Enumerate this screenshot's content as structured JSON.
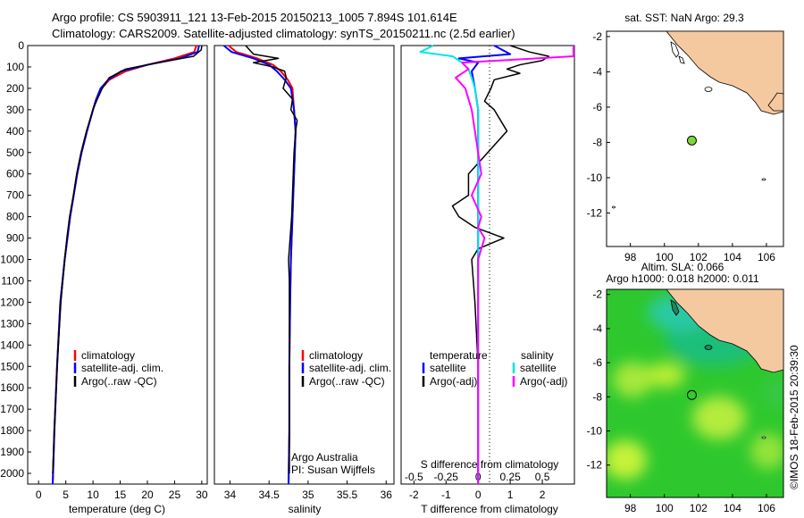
{
  "header": {
    "line1": "Argo profile: CS 5903911_121 13-Feb-2015 20150213_1005 7.894S 101.614E",
    "line2": "Climatology: CARS2009. Satellite-adjusted climatology: synTS_20150211.nc (2.5d earlier)"
  },
  "colors": {
    "climatology": "#ff0000",
    "satellite": "#0000ff",
    "argo": "#000000",
    "sat_salinity": "#00e5e5",
    "argo_salinity": "#ff00ff",
    "land": "#f5c9a0",
    "ocean_sla": "#2ecf2e",
    "float": "#7cd63c"
  },
  "chart_data": [
    {
      "type": "line",
      "panel": "temperature",
      "xlabel": "temperature (deg C)",
      "ylabel": "",
      "xlim": [
        -2,
        31
      ],
      "ylim": [
        2050,
        0
      ],
      "xticks": [
        "0",
        "5",
        "10",
        "15",
        "20",
        "25",
        "30"
      ],
      "yticks": [
        "0",
        "100",
        "200",
        "300",
        "400",
        "500",
        "600",
        "700",
        "800",
        "900",
        "1000",
        "1100",
        "1200",
        "1300",
        "1400",
        "1500",
        "1600",
        "1700",
        "1800",
        "1900",
        "2000"
      ],
      "legend": [
        "climatology",
        "satellite-adj. clim.",
        "Argo(..raw -QC)"
      ],
      "series": [
        {
          "name": "climatology",
          "depth": [
            0,
            30,
            60,
            90,
            120,
            160,
            200,
            250,
            300,
            400,
            500,
            600,
            800,
            1000,
            1200,
            1500,
            1800,
            2050
          ],
          "values": [
            29.0,
            28.6,
            25.0,
            20.0,
            16.0,
            13.0,
            11.6,
            10.6,
            10.0,
            8.9,
            7.9,
            7.1,
            5.8,
            4.8,
            4.0,
            3.4,
            2.9,
            2.6
          ]
        },
        {
          "name": "satellite-adj. clim.",
          "depth": [
            0,
            30,
            60,
            90,
            120,
            160,
            200,
            250,
            300,
            400,
            500,
            600,
            800,
            1000,
            1200,
            1500,
            1800,
            2050
          ],
          "values": [
            29.5,
            29.2,
            26.0,
            20.0,
            15.2,
            12.8,
            11.4,
            10.6,
            10.0,
            8.9,
            7.9,
            7.1,
            5.8,
            4.8,
            4.0,
            3.4,
            2.9,
            2.6
          ]
        },
        {
          "name": "Argo(..raw -QC)",
          "depth": [
            0,
            20,
            50,
            80,
            110,
            150,
            200,
            250,
            300,
            400,
            500,
            600,
            700,
            800,
            900,
            1000,
            1200,
            1500,
            1800,
            2000
          ],
          "values": [
            30.0,
            29.9,
            28.5,
            22.0,
            16.0,
            13.0,
            11.7,
            10.8,
            10.0,
            8.8,
            7.8,
            7.0,
            6.4,
            5.7,
            5.2,
            4.8,
            4.1,
            3.4,
            2.9,
            2.6
          ]
        }
      ]
    },
    {
      "type": "line",
      "panel": "salinity",
      "xlabel": "salinity",
      "xlim": [
        33.8,
        36.1
      ],
      "ylim": [
        2050,
        0
      ],
      "xticks": [
        "34",
        "34.5",
        "35",
        "35.5",
        "36"
      ],
      "legend": [
        "climatology",
        "satellite-adj. clim.",
        "Argo(..raw -QC)"
      ],
      "annotations": [
        "Argo Australia",
        "PI: Susan Wijffels"
      ],
      "series": [
        {
          "name": "climatology",
          "depth": [
            0,
            30,
            60,
            90,
            120,
            160,
            200,
            300,
            400,
            600,
            800,
            1000,
            1200,
            1500,
            1800,
            2050
          ],
          "values": [
            33.98,
            34.08,
            34.35,
            34.55,
            34.65,
            34.74,
            34.8,
            34.82,
            34.84,
            34.82,
            34.8,
            34.78,
            34.77,
            34.76,
            34.76,
            34.75
          ]
        },
        {
          "name": "satellite-adj. clim.",
          "depth": [
            0,
            30,
            60,
            90,
            120,
            160,
            200,
            300,
            400,
            600,
            800,
            1000,
            1200,
            1500,
            1800,
            2050
          ],
          "values": [
            33.92,
            34.02,
            34.3,
            34.5,
            34.6,
            34.7,
            34.78,
            34.82,
            34.84,
            34.82,
            34.8,
            34.78,
            34.77,
            34.76,
            34.76,
            34.75
          ]
        },
        {
          "name": "Argo(..raw -QC)",
          "depth": [
            0,
            40,
            60,
            80,
            100,
            120,
            150,
            200,
            250,
            300,
            350,
            400,
            500,
            600,
            700,
            800,
            900,
            1000,
            1100,
            1200,
            1400,
            1500,
            1600,
            1800,
            2000
          ],
          "values": [
            34.2,
            34.3,
            34.62,
            34.3,
            34.55,
            34.7,
            34.72,
            34.68,
            34.8,
            34.78,
            34.86,
            34.84,
            34.82,
            34.81,
            34.8,
            34.79,
            34.77,
            34.75,
            34.76,
            34.76,
            34.76,
            34.76,
            34.76,
            34.76,
            34.76
          ]
        }
      ]
    },
    {
      "type": "line",
      "panel": "differences",
      "xlabel": "T difference from climatology",
      "xlabel2": "S difference from climatology",
      "xlim": [
        -2.4,
        3.0
      ],
      "ylim": [
        2050,
        0
      ],
      "xticks": [
        "-2",
        "-1",
        "0",
        "1",
        "2"
      ],
      "xticks_top": [
        "-0.5",
        "-0.25",
        "0",
        "0.25",
        "0.5"
      ],
      "legend_groups": [
        {
          "title": "temperature",
          "items": [
            "satellite",
            "Argo(-adj)"
          ]
        },
        {
          "title": "salinity",
          "items": [
            "satellite",
            "Argo(-adj)"
          ]
        }
      ],
      "series": [
        {
          "name": "T satellite",
          "depth": [
            0,
            40,
            60,
            80,
            120,
            200,
            300,
            600,
            1000,
            2050
          ],
          "values": [
            0.5,
            1.0,
            -0.6,
            0.0,
            -0.2,
            -0.1,
            0.0,
            0.0,
            0.0,
            0.0
          ]
        },
        {
          "name": "T Argo(-adj)",
          "depth": [
            0,
            30,
            50,
            70,
            90,
            110,
            130,
            160,
            200,
            260,
            300,
            400,
            500,
            600,
            700,
            750,
            800,
            850,
            900,
            950,
            1000,
            1200,
            1500,
            1800,
            2050
          ],
          "values": [
            1.0,
            1.6,
            2.2,
            2.0,
            1.3,
            0.9,
            1.3,
            0.5,
            0.4,
            0.2,
            0.5,
            0.9,
            0.3,
            -0.3,
            -0.3,
            -0.8,
            -0.6,
            -0.1,
            0.8,
            0.0,
            -0.2,
            -0.1,
            0.0,
            0.0,
            0.0
          ]
        },
        {
          "name": "S satellite",
          "depth": [
            0,
            30,
            50,
            80,
            110,
            150,
            200,
            300,
            600,
            1000,
            2050
          ],
          "values": [
            -1.4,
            -1.8,
            -0.8,
            -0.5,
            -0.3,
            -0.2,
            -0.1,
            0.0,
            0.0,
            0.0,
            0.0
          ]
        },
        {
          "name": "S Argo(-adj)",
          "depth": [
            0,
            30,
            50,
            80,
            110,
            150,
            200,
            300,
            400,
            600,
            700,
            800,
            850,
            900,
            1000,
            1500,
            2050
          ],
          "values": [
            3.0,
            3.8,
            3.8,
            -0.5,
            -0.3,
            -0.7,
            -0.4,
            -0.2,
            -0.1,
            0.1,
            -0.2,
            0.1,
            0.0,
            0.2,
            0.0,
            0.0,
            0.0
          ]
        }
      ]
    }
  ],
  "maps": {
    "sst": {
      "title": "sat. SST: NaN Argo: 29.3",
      "xticks": [
        "98",
        "100",
        "102",
        "104",
        "106"
      ],
      "yticks": [
        "-2",
        "-4",
        "-6",
        "-8",
        "-10",
        "-12"
      ]
    },
    "sla": {
      "title1": "Altim. SLA: 0.066",
      "title2": "Argo h1000: 0.018 h2000: 0.011",
      "xticks": [
        "98",
        "100",
        "102",
        "104",
        "106"
      ],
      "yticks": [
        "-2",
        "-4",
        "-6",
        "-8",
        "-10",
        "-12"
      ]
    },
    "float_position": {
      "lon": 101.614,
      "lat": -7.894
    }
  },
  "footer": {
    "credit": "©IMOS 18-Feb-2015 20:39:30"
  }
}
